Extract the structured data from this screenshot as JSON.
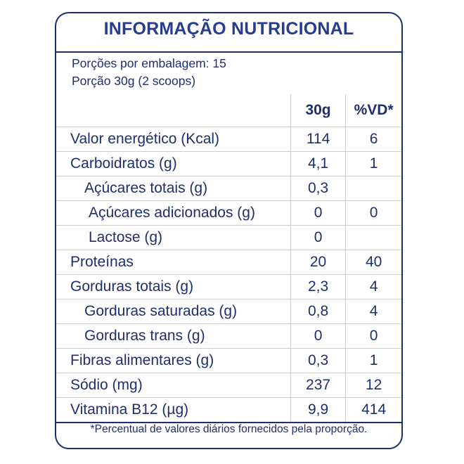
{
  "title": "INFORMAÇÃO NUTRICIONAL",
  "portions_per_package": "Porções por embalagem: 15",
  "portion_size": "Porção 30g (2 scoops)",
  "columns": {
    "amount": "30g",
    "dv": "%VD*"
  },
  "rows": [
    {
      "name": "Valor energético (Kcal)",
      "amount": "114",
      "dv": "6",
      "indent": 0
    },
    {
      "name": "Carboidratos (g)",
      "amount": "4,1",
      "dv": "1",
      "indent": 0
    },
    {
      "name": "Açúcares totais (g)",
      "amount": "0,3",
      "dv": "",
      "indent": 1
    },
    {
      "name": "Açúcares adicionados (g)",
      "amount": "0",
      "dv": "0",
      "indent": 2
    },
    {
      "name": "Lactose (g)",
      "amount": "0",
      "dv": "",
      "indent": 2
    },
    {
      "name": "Proteínas",
      "amount": "20",
      "dv": "40",
      "indent": 0
    },
    {
      "name": "Gorduras totais (g)",
      "amount": "2,3",
      "dv": "4",
      "indent": 0
    },
    {
      "name": "Gorduras saturadas (g)",
      "amount": "0,8",
      "dv": "4",
      "indent": 1
    },
    {
      "name": "Gorduras trans (g)",
      "amount": "0",
      "dv": "0",
      "indent": 1
    },
    {
      "name": "Fibras alimentares (g)",
      "amount": "0,3",
      "dv": "1",
      "indent": 0
    },
    {
      "name": "Sódio (mg)",
      "amount": "237",
      "dv": "12",
      "indent": 0
    },
    {
      "name": "Vitamina B12 (µg)",
      "amount": "9,9",
      "dv": "414",
      "indent": 0
    }
  ],
  "footnote": "*Percentual de valores diários fornecidos pela proporção.",
  "colors": {
    "text": "#1d2f6e",
    "title": "#273c8c",
    "border": "#1d2f6e",
    "grid": "#cfcfcf"
  }
}
